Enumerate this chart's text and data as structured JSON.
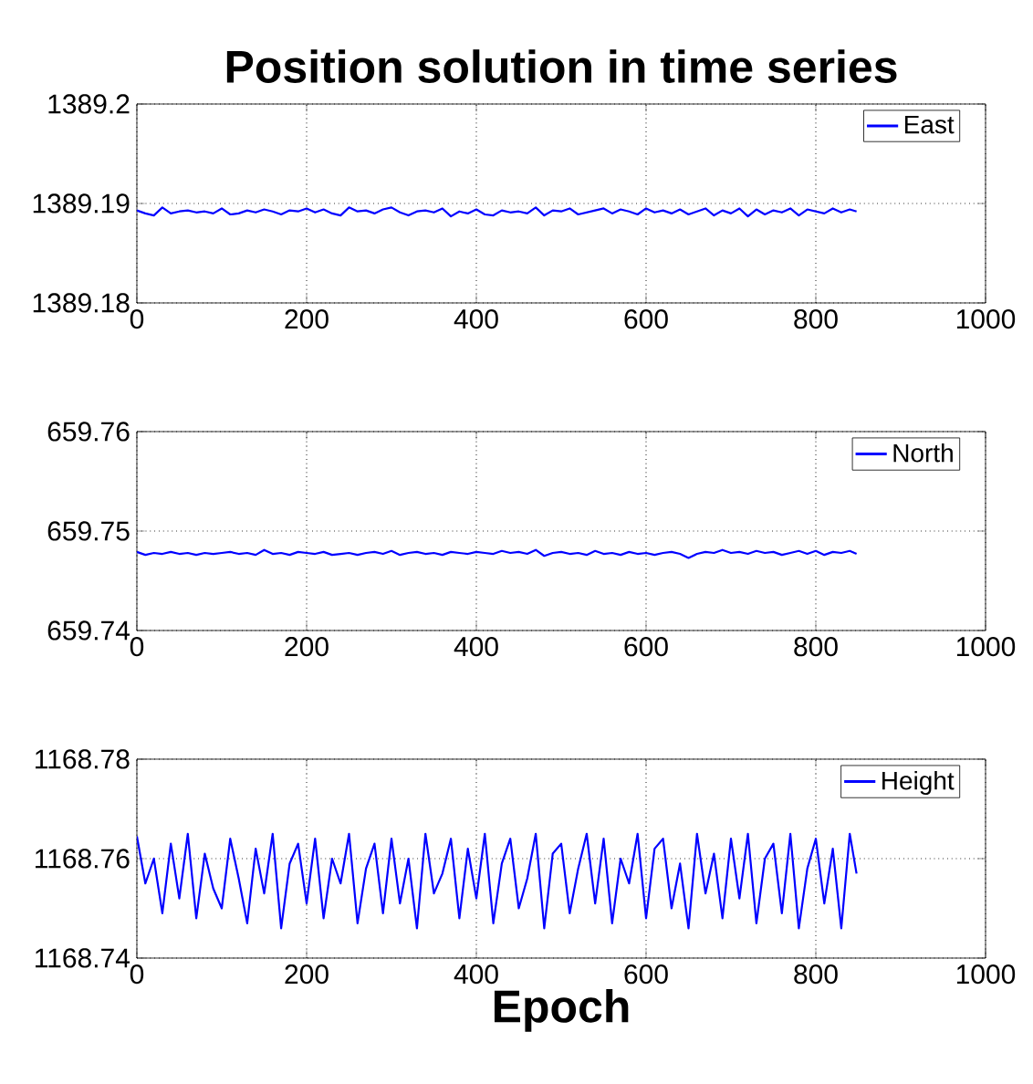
{
  "chart_data": [
    {
      "type": "line",
      "title": "Position solution in time series",
      "x": [
        0,
        10,
        20,
        30,
        40,
        50,
        60,
        70,
        80,
        90,
        100,
        110,
        120,
        130,
        140,
        150,
        160,
        170,
        180,
        190,
        200,
        210,
        220,
        230,
        240,
        250,
        260,
        270,
        280,
        290,
        300,
        310,
        320,
        330,
        340,
        350,
        360,
        370,
        380,
        390,
        400,
        410,
        420,
        430,
        440,
        450,
        460,
        470,
        480,
        490,
        500,
        510,
        520,
        530,
        540,
        550,
        560,
        570,
        580,
        590,
        600,
        610,
        620,
        630,
        640,
        650,
        660,
        670,
        680,
        690,
        700,
        710,
        720,
        730,
        740,
        750,
        760,
        770,
        780,
        790,
        800,
        810,
        820,
        830,
        840,
        848
      ],
      "series": [
        {
          "name": "East",
          "color": "#0000ff",
          "values": [
            1389.1893,
            1389.189,
            1389.1888,
            1389.1896,
            1389.189,
            1389.1892,
            1389.1893,
            1389.1891,
            1389.1892,
            1389.189,
            1389.1895,
            1389.1889,
            1389.189,
            1389.1893,
            1389.1891,
            1389.1894,
            1389.1892,
            1389.1889,
            1389.1893,
            1389.1892,
            1389.1895,
            1389.1891,
            1389.1894,
            1389.189,
            1389.1888,
            1389.1896,
            1389.1892,
            1389.1893,
            1389.189,
            1389.1894,
            1389.1896,
            1389.1891,
            1389.1888,
            1389.1892,
            1389.1893,
            1389.1891,
            1389.1895,
            1389.1887,
            1389.1892,
            1389.189,
            1389.1894,
            1389.1889,
            1389.1888,
            1389.1893,
            1389.1891,
            1389.1892,
            1389.189,
            1389.1896,
            1389.1888,
            1389.1893,
            1389.1892,
            1389.1895,
            1389.1889,
            1389.1891,
            1389.1893,
            1389.1895,
            1389.189,
            1389.1894,
            1389.1892,
            1389.1889,
            1389.1895,
            1389.1891,
            1389.1893,
            1389.189,
            1389.1894,
            1389.1889,
            1389.1892,
            1389.1895,
            1389.1888,
            1389.1893,
            1389.189,
            1389.1895,
            1389.1887,
            1389.1894,
            1389.1889,
            1389.1893,
            1389.1891,
            1389.1895,
            1389.1888,
            1389.1894,
            1389.1892,
            1389.189,
            1389.1895,
            1389.1891,
            1389.1894,
            1389.1892
          ]
        }
      ],
      "xlim": [
        0,
        1000
      ],
      "xticks": [
        0,
        200,
        400,
        600,
        800,
        1000
      ],
      "ylim": [
        1389.18,
        1389.2
      ],
      "yticks": [
        1389.18,
        1389.19,
        1389.2
      ],
      "grid": true,
      "legend": "top right"
    },
    {
      "type": "line",
      "x": [
        0,
        10,
        20,
        30,
        40,
        50,
        60,
        70,
        80,
        90,
        100,
        110,
        120,
        130,
        140,
        150,
        160,
        170,
        180,
        190,
        200,
        210,
        220,
        230,
        240,
        250,
        260,
        270,
        280,
        290,
        300,
        310,
        320,
        330,
        340,
        350,
        360,
        370,
        380,
        390,
        400,
        410,
        420,
        430,
        440,
        450,
        460,
        470,
        480,
        490,
        500,
        510,
        520,
        530,
        540,
        550,
        560,
        570,
        580,
        590,
        600,
        610,
        620,
        630,
        640,
        650,
        660,
        670,
        680,
        690,
        700,
        710,
        720,
        730,
        740,
        750,
        760,
        770,
        780,
        790,
        800,
        810,
        820,
        830,
        840,
        848
      ],
      "series": [
        {
          "name": "North",
          "color": "#0000ff",
          "values": [
            659.7479,
            659.7476,
            659.7478,
            659.7477,
            659.7479,
            659.7477,
            659.7478,
            659.7476,
            659.7478,
            659.7477,
            659.7478,
            659.7479,
            659.7477,
            659.7478,
            659.7476,
            659.7481,
            659.7477,
            659.7478,
            659.7476,
            659.7479,
            659.7478,
            659.7477,
            659.7479,
            659.7476,
            659.7477,
            659.7478,
            659.7476,
            659.7478,
            659.7479,
            659.7477,
            659.748,
            659.7476,
            659.7478,
            659.7479,
            659.7477,
            659.7478,
            659.7476,
            659.7479,
            659.7478,
            659.7477,
            659.7479,
            659.7478,
            659.7477,
            659.748,
            659.7478,
            659.7479,
            659.7477,
            659.7481,
            659.7475,
            659.7478,
            659.7479,
            659.7477,
            659.7478,
            659.7476,
            659.748,
            659.7477,
            659.7478,
            659.7476,
            659.7479,
            659.7477,
            659.7478,
            659.7476,
            659.7478,
            659.7479,
            659.7477,
            659.7473,
            659.7477,
            659.7479,
            659.7478,
            659.7481,
            659.7478,
            659.7479,
            659.7477,
            659.748,
            659.7478,
            659.7479,
            659.7476,
            659.7478,
            659.748,
            659.7477,
            659.748,
            659.7476,
            659.7479,
            659.7478,
            659.748,
            659.7477
          ]
        }
      ],
      "xlim": [
        0,
        1000
      ],
      "xticks": [
        0,
        200,
        400,
        600,
        800,
        1000
      ],
      "ylim": [
        659.74,
        659.76
      ],
      "yticks": [
        659.74,
        659.75,
        659.76
      ],
      "grid": true,
      "legend": "top right"
    },
    {
      "type": "line",
      "xlabel": "Epoch",
      "x": [
        0,
        10,
        20,
        30,
        40,
        50,
        60,
        70,
        80,
        90,
        100,
        110,
        120,
        130,
        140,
        150,
        160,
        170,
        180,
        190,
        200,
        210,
        220,
        230,
        240,
        250,
        260,
        270,
        280,
        290,
        300,
        310,
        320,
        330,
        340,
        350,
        360,
        370,
        380,
        390,
        400,
        410,
        420,
        430,
        440,
        450,
        460,
        470,
        480,
        490,
        500,
        510,
        520,
        530,
        540,
        550,
        560,
        570,
        580,
        590,
        600,
        610,
        620,
        630,
        640,
        650,
        660,
        670,
        680,
        690,
        700,
        710,
        720,
        730,
        740,
        750,
        760,
        770,
        780,
        790,
        800,
        810,
        820,
        830,
        840,
        848
      ],
      "series": [
        {
          "name": "Height",
          "color": "#0000ff",
          "values": [
            1168.7645,
            1168.755,
            1168.76,
            1168.749,
            1168.763,
            1168.752,
            1168.765,
            1168.748,
            1168.761,
            1168.754,
            1168.75,
            1168.764,
            1168.756,
            1168.747,
            1168.762,
            1168.753,
            1168.765,
            1168.746,
            1168.759,
            1168.763,
            1168.751,
            1168.764,
            1168.748,
            1168.76,
            1168.755,
            1168.765,
            1168.747,
            1168.758,
            1168.763,
            1168.749,
            1168.764,
            1168.751,
            1168.76,
            1168.746,
            1168.765,
            1168.753,
            1168.757,
            1168.764,
            1168.748,
            1168.762,
            1168.752,
            1168.765,
            1168.747,
            1168.759,
            1168.764,
            1168.75,
            1168.756,
            1168.765,
            1168.746,
            1168.761,
            1168.763,
            1168.749,
            1168.758,
            1168.765,
            1168.751,
            1168.764,
            1168.747,
            1168.76,
            1168.755,
            1168.765,
            1168.748,
            1168.762,
            1168.764,
            1168.75,
            1168.759,
            1168.746,
            1168.765,
            1168.753,
            1168.761,
            1168.748,
            1168.764,
            1168.752,
            1168.765,
            1168.747,
            1168.76,
            1168.763,
            1168.749,
            1168.765,
            1168.746,
            1168.758,
            1168.764,
            1168.751,
            1168.762,
            1168.746,
            1168.765,
            1168.757
          ]
        }
      ],
      "xlim": [
        0,
        1000
      ],
      "xticks": [
        0,
        200,
        400,
        600,
        800,
        1000
      ],
      "ylim": [
        1168.74,
        1168.78
      ],
      "yticks": [
        1168.74,
        1168.76,
        1168.78
      ],
      "grid": true,
      "legend": "top right"
    }
  ]
}
